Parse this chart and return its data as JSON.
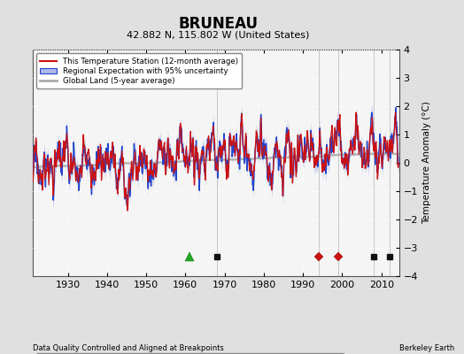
{
  "title": "BRUNEAU",
  "subtitle": "42.882 N, 115.802 W (United States)",
  "ylabel": "Temperature Anomaly (°C)",
  "xlabel_bottom": "Data Quality Controlled and Aligned at Breakpoints",
  "xlabel_right": "Berkeley Earth",
  "ylim": [
    -4,
    4
  ],
  "xlim": [
    1921,
    2014.5
  ],
  "yticks": [
    -4,
    -3,
    -2,
    -1,
    0,
    1,
    2,
    3,
    4
  ],
  "xticks": [
    1930,
    1940,
    1950,
    1960,
    1970,
    1980,
    1990,
    2000,
    2010
  ],
  "bg_color": "#e0e0e0",
  "plot_bg_color": "#f5f5f5",
  "station_move_years": [
    1994,
    1999
  ],
  "record_gap_years": [
    1961
  ],
  "time_obs_years": [],
  "empirical_break_years": [
    1968,
    2008,
    2012
  ],
  "marker_y": -3.3,
  "vert_line_years": [
    1968,
    1994,
    1999,
    2008,
    2012
  ],
  "seed": 17,
  "regional_noise": 0.6,
  "station_extra_noise": 0.35,
  "global_land_smooth": 72
}
